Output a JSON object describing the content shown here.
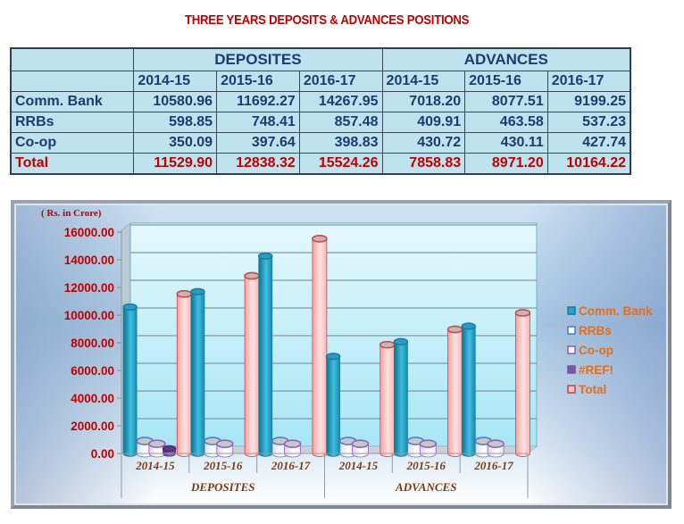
{
  "title": "THREE YEARS DEPOSITS & ADVANCES POSITIONS",
  "table": {
    "groups": [
      "DEPOSITES",
      "ADVANCES"
    ],
    "years": [
      "2014-15",
      "2015-16",
      "2016-17",
      "2014-15",
      "2015-16",
      "2016-17"
    ],
    "rows": [
      {
        "label": "Comm. Bank",
        "values": [
          "10580.96",
          "11692.27",
          "14267.95",
          "7018.20",
          "8077.51",
          "9199.25"
        ]
      },
      {
        "label": "RRBs",
        "values": [
          "598.85",
          "748.41",
          "857.48",
          "409.91",
          "463.58",
          "537.23"
        ]
      },
      {
        "label": "Co-op",
        "values": [
          "350.09",
          "397.64",
          "398.83",
          "430.72",
          "430.11",
          "427.74"
        ]
      },
      {
        "label": "Total",
        "values": [
          "11529.90",
          "12838.32",
          "15524.26",
          "7858.83",
          "8971.20",
          "10164.22"
        ]
      }
    ]
  },
  "chart_data": {
    "type": "bar",
    "title": "",
    "unit_label": "( Rs. in Crore)",
    "xlabel": "",
    "ylabel": "( Rs. in Crore)",
    "ylim": [
      0,
      16000
    ],
    "yticks": [
      "0.00",
      "2000.00",
      "4000.00",
      "6000.00",
      "8000.00",
      "10000.00",
      "12000.00",
      "14000.00",
      "16000.00"
    ],
    "grid": true,
    "legend_position": "right",
    "categories": [
      "2014-15",
      "2015-16",
      "2016-17",
      "2014-15",
      "2015-16",
      "2016-17"
    ],
    "category_groups": [
      {
        "label": "DEPOSITES",
        "categories": [
          "2014-15",
          "2015-16",
          "2016-17"
        ]
      },
      {
        "label": "ADVANCES",
        "categories": [
          "2014-15",
          "2015-16",
          "2016-17"
        ]
      }
    ],
    "series": [
      {
        "name": "Comm. Bank",
        "color": "#2aa3c8",
        "values": [
          10580.96,
          11692.27,
          14267.95,
          7018.2,
          8077.51,
          9199.25
        ]
      },
      {
        "name": "RRBs",
        "color": "#4f7fc4",
        "values": [
          598.85,
          748.41,
          857.48,
          409.91,
          463.58,
          537.23
        ]
      },
      {
        "name": "Co-op",
        "color": "#8d62b8",
        "values": [
          350.09,
          397.64,
          398.83,
          430.72,
          430.11,
          427.74
        ]
      },
      {
        "name": "#REF!",
        "color": "#6b4a92",
        "values": [
          350,
          0,
          0,
          0,
          0,
          0
        ]
      },
      {
        "name": "Total",
        "color": "#f4b6b6",
        "values": [
          11529.9,
          12838.32,
          15524.26,
          7858.83,
          8971.2,
          10164.22
        ]
      }
    ]
  }
}
